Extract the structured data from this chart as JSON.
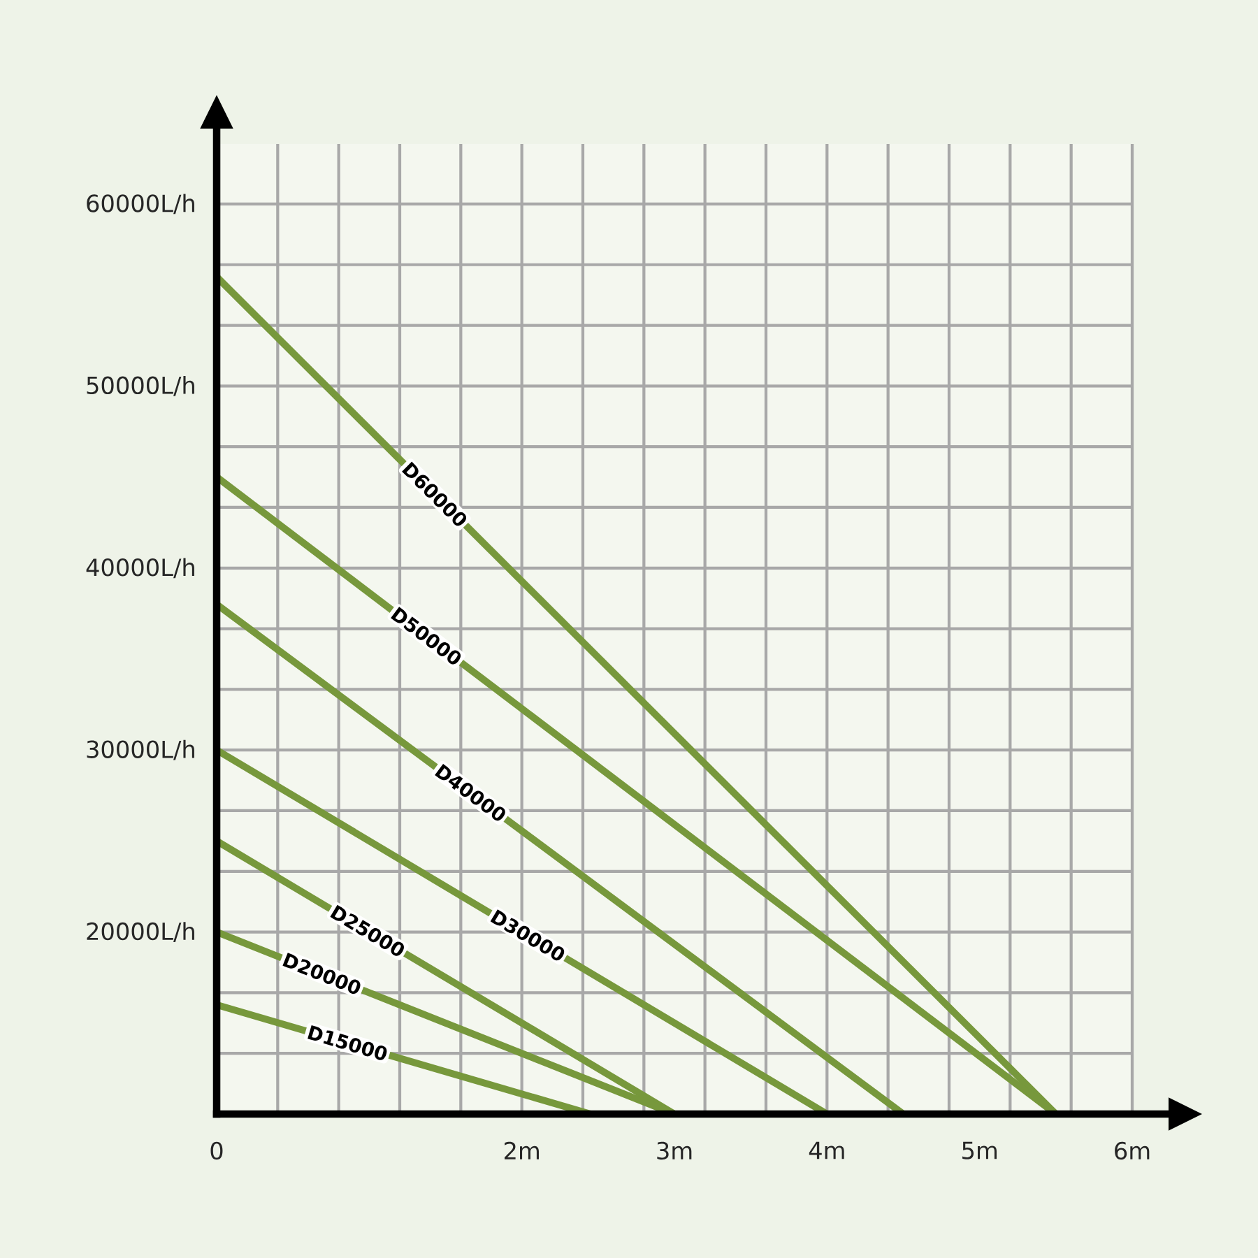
{
  "chart_data": {
    "type": "line",
    "xlim": [
      0,
      6
    ],
    "xticks": [
      0,
      {
        "value": 2,
        "label": "2m"
      },
      {
        "value": 3,
        "label": "3m"
      },
      {
        "value": 4,
        "label": "4m"
      },
      {
        "value": 5,
        "label": "5m"
      },
      {
        "value": 6,
        "label": "6m"
      }
    ],
    "ylim": [
      10000,
      63300
    ],
    "yticks": [
      {
        "value": 20000,
        "label": "20000L/h"
      },
      {
        "value": 30000,
        "label": "30000L/h"
      },
      {
        "value": 40000,
        "label": "40000L/h"
      },
      {
        "value": 50000,
        "label": "50000L/h"
      },
      {
        "value": 60000,
        "label": "60000L/h"
      }
    ],
    "grid": true,
    "series": [
      {
        "name": "D60000",
        "color": "#77983c",
        "x": [
          0,
          5.5
        ],
        "values": [
          56000,
          10000
        ]
      },
      {
        "name": "D50000",
        "color": "#77983c",
        "x": [
          0,
          5.5
        ],
        "values": [
          45000,
          10000
        ]
      },
      {
        "name": "D40000",
        "color": "#77983c",
        "x": [
          0,
          4.5
        ],
        "values": [
          38000,
          10000
        ]
      },
      {
        "name": "D30000",
        "color": "#77983c",
        "x": [
          0,
          4
        ],
        "values": [
          30000,
          10000
        ]
      },
      {
        "name": "D25000",
        "color": "#77983c",
        "x": [
          0,
          3
        ],
        "values": [
          25000,
          10000
        ]
      },
      {
        "name": "D20000",
        "color": "#77983c",
        "x": [
          0,
          3
        ],
        "values": [
          20000,
          10000
        ]
      },
      {
        "name": "D15000",
        "color": "#77983c",
        "x": [
          0,
          2.45
        ],
        "values": [
          16000,
          10000
        ]
      }
    ]
  }
}
